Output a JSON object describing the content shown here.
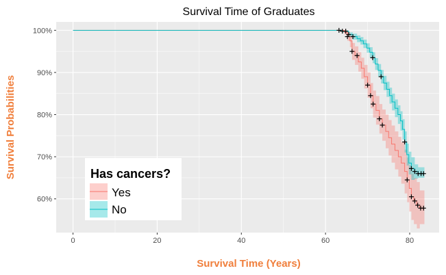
{
  "chart_data": {
    "type": "line",
    "subtype": "kaplan-meier step curve with confidence bands and censor marks",
    "title": "Survival Time of Graduates",
    "xlabel": "Survival Time (Years)",
    "ylabel": "Survival Probabilities",
    "xlim": [
      -4,
      87
    ],
    "ylim": [
      0.52,
      1.02
    ],
    "x_ticks": [
      0,
      20,
      40,
      60,
      80
    ],
    "y_ticks": [
      0.6,
      0.7,
      0.8,
      0.9,
      1.0
    ],
    "x_tick_labels": [
      "0",
      "20",
      "40",
      "60",
      "80"
    ],
    "y_tick_labels": [
      "60%",
      "70%",
      "80%",
      "90%",
      "100%"
    ],
    "grid": true,
    "legend": {
      "title": "Has cancers?",
      "placement": "bottom-left",
      "entries": [
        "Yes",
        "No"
      ]
    },
    "colors": {
      "Yes": "#F8766D",
      "No": "#00BFC4",
      "panel": "#EBEBEB",
      "grid": "#FFFFFF",
      "axis_title": "#F07F3C"
    },
    "series": [
      {
        "name": "Yes",
        "color": "#F8766D",
        "steps": [
          [
            0,
            1.0
          ],
          [
            64.5,
            0.995
          ],
          [
            65.2,
            0.985
          ],
          [
            65.8,
            0.975
          ],
          [
            66.3,
            0.95
          ],
          [
            67,
            0.94
          ],
          [
            67.8,
            0.925
          ],
          [
            68.5,
            0.91
          ],
          [
            69.2,
            0.89
          ],
          [
            70,
            0.87
          ],
          [
            70.7,
            0.845
          ],
          [
            71.3,
            0.825
          ],
          [
            72,
            0.81
          ],
          [
            72.8,
            0.79
          ],
          [
            73.5,
            0.775
          ],
          [
            74.3,
            0.76
          ],
          [
            75,
            0.745
          ],
          [
            75.7,
            0.73
          ],
          [
            76.5,
            0.715
          ],
          [
            77.3,
            0.7
          ],
          [
            78,
            0.685
          ],
          [
            78.8,
            0.665
          ],
          [
            79.4,
            0.645
          ],
          [
            79.9,
            0.625
          ],
          [
            80.4,
            0.605
          ],
          [
            81,
            0.595
          ],
          [
            81.7,
            0.585
          ],
          [
            82.4,
            0.578
          ],
          [
            83.5,
            0.578
          ]
        ],
        "lower": [
          [
            0,
            1.0
          ],
          [
            64.5,
            0.99
          ],
          [
            65.2,
            0.975
          ],
          [
            65.8,
            0.96
          ],
          [
            66.3,
            0.93
          ],
          [
            67,
            0.918
          ],
          [
            67.8,
            0.902
          ],
          [
            68.5,
            0.885
          ],
          [
            69.2,
            0.862
          ],
          [
            70,
            0.84
          ],
          [
            70.7,
            0.815
          ],
          [
            71.3,
            0.793
          ],
          [
            72,
            0.776
          ],
          [
            72.8,
            0.755
          ],
          [
            73.5,
            0.738
          ],
          [
            74.3,
            0.72
          ],
          [
            75,
            0.703
          ],
          [
            75.7,
            0.686
          ],
          [
            76.5,
            0.67
          ],
          [
            77.3,
            0.653
          ],
          [
            78,
            0.636
          ],
          [
            78.8,
            0.613
          ],
          [
            79.4,
            0.592
          ],
          [
            79.9,
            0.57
          ],
          [
            80.4,
            0.55
          ],
          [
            81,
            0.54
          ],
          [
            81.7,
            0.53
          ],
          [
            82.4,
            0.54
          ],
          [
            83.5,
            0.54
          ]
        ],
        "upper": [
          [
            0,
            1.0
          ],
          [
            64.5,
            1.0
          ],
          [
            65.2,
            0.995
          ],
          [
            65.8,
            0.99
          ],
          [
            66.3,
            0.97
          ],
          [
            67,
            0.962
          ],
          [
            67.8,
            0.948
          ],
          [
            68.5,
            0.935
          ],
          [
            69.2,
            0.918
          ],
          [
            70,
            0.9
          ],
          [
            70.7,
            0.875
          ],
          [
            71.3,
            0.857
          ],
          [
            72,
            0.844
          ],
          [
            72.8,
            0.825
          ],
          [
            73.5,
            0.812
          ],
          [
            74.3,
            0.8
          ],
          [
            75,
            0.787
          ],
          [
            75.7,
            0.774
          ],
          [
            76.5,
            0.76
          ],
          [
            77.3,
            0.747
          ],
          [
            78,
            0.734
          ],
          [
            78.8,
            0.717
          ],
          [
            79.4,
            0.698
          ],
          [
            79.9,
            0.68
          ],
          [
            80.4,
            0.66
          ],
          [
            81,
            0.65
          ],
          [
            81.7,
            0.64
          ],
          [
            82.4,
            0.62
          ],
          [
            83.5,
            0.62
          ]
        ],
        "censor_x": [
          65.2,
          66.3,
          67.5,
          70,
          70.7,
          71.3,
          72.8,
          73.5,
          79.4,
          80.4,
          81.2,
          81.9,
          82.6,
          83.3
        ]
      },
      {
        "name": "No",
        "color": "#00BFC4",
        "steps": [
          [
            0,
            1.0
          ],
          [
            64,
            0.998
          ],
          [
            65.5,
            0.99
          ],
          [
            66.5,
            0.985
          ],
          [
            67.5,
            0.98
          ],
          [
            68.3,
            0.975
          ],
          [
            69,
            0.968
          ],
          [
            69.8,
            0.958
          ],
          [
            70.5,
            0.948
          ],
          [
            71.2,
            0.935
          ],
          [
            71.8,
            0.92
          ],
          [
            72.5,
            0.905
          ],
          [
            73.2,
            0.89
          ],
          [
            73.8,
            0.875
          ],
          [
            74.5,
            0.86
          ],
          [
            75.2,
            0.845
          ],
          [
            75.8,
            0.83
          ],
          [
            76.5,
            0.815
          ],
          [
            77.2,
            0.8
          ],
          [
            77.8,
            0.785
          ],
          [
            78.3,
            0.765
          ],
          [
            78.8,
            0.735
          ],
          [
            79.3,
            0.705
          ],
          [
            79.8,
            0.685
          ],
          [
            80.4,
            0.672
          ],
          [
            81.2,
            0.665
          ],
          [
            82,
            0.66
          ],
          [
            83.5,
            0.66
          ]
        ],
        "lower": [
          [
            0,
            1.0
          ],
          [
            64,
            0.995
          ],
          [
            65.5,
            0.985
          ],
          [
            66.5,
            0.978
          ],
          [
            67.5,
            0.972
          ],
          [
            68.3,
            0.966
          ],
          [
            69,
            0.958
          ],
          [
            69.8,
            0.947
          ],
          [
            70.5,
            0.936
          ],
          [
            71.2,
            0.922
          ],
          [
            71.8,
            0.906
          ],
          [
            72.5,
            0.89
          ],
          [
            73.2,
            0.874
          ],
          [
            73.8,
            0.858
          ],
          [
            74.5,
            0.842
          ],
          [
            75.2,
            0.826
          ],
          [
            75.8,
            0.81
          ],
          [
            76.5,
            0.794
          ],
          [
            77.2,
            0.778
          ],
          [
            77.8,
            0.762
          ],
          [
            78.3,
            0.741
          ],
          [
            78.8,
            0.71
          ],
          [
            79.3,
            0.679
          ],
          [
            79.8,
            0.658
          ],
          [
            80.4,
            0.645
          ],
          [
            81.2,
            0.648
          ],
          [
            82,
            0.65
          ],
          [
            83.5,
            0.65
          ]
        ],
        "upper": [
          [
            0,
            1.0
          ],
          [
            64,
            1.0
          ],
          [
            65.5,
            0.995
          ],
          [
            66.5,
            0.992
          ],
          [
            67.5,
            0.988
          ],
          [
            68.3,
            0.984
          ],
          [
            69,
            0.978
          ],
          [
            69.8,
            0.969
          ],
          [
            70.5,
            0.96
          ],
          [
            71.2,
            0.948
          ],
          [
            71.8,
            0.934
          ],
          [
            72.5,
            0.92
          ],
          [
            73.2,
            0.906
          ],
          [
            73.8,
            0.892
          ],
          [
            74.5,
            0.878
          ],
          [
            75.2,
            0.864
          ],
          [
            75.8,
            0.85
          ],
          [
            76.5,
            0.836
          ],
          [
            77.2,
            0.822
          ],
          [
            77.8,
            0.808
          ],
          [
            78.3,
            0.789
          ],
          [
            78.8,
            0.76
          ],
          [
            79.3,
            0.731
          ],
          [
            79.8,
            0.712
          ],
          [
            80.4,
            0.699
          ],
          [
            81.2,
            0.682
          ],
          [
            82,
            0.675
          ],
          [
            83.5,
            0.675
          ]
        ],
        "censor_x": [
          63.2,
          64,
          64.8,
          65.5,
          66.5,
          71.2,
          73.2,
          78.8,
          80.4,
          81.2,
          82,
          82.7,
          83.3
        ]
      }
    ]
  }
}
